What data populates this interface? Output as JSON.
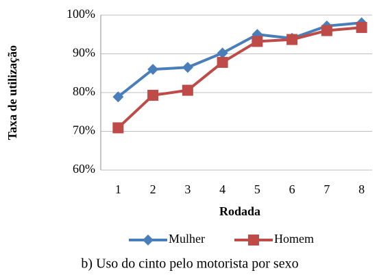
{
  "chart_data": {
    "type": "line",
    "caption": "b) Uso do cinto pelo motorista por sexo",
    "xlabel": "Rodada",
    "ylabel": "Taxa de utilização",
    "categories": [
      "1",
      "2",
      "3",
      "4",
      "5",
      "6",
      "7",
      "8"
    ],
    "series": [
      {
        "name": "Mulher",
        "color": "#4a7ebb",
        "marker": "diamond",
        "values": [
          78.9,
          86.0,
          86.5,
          90.2,
          95.0,
          94.0,
          97.2,
          98.0
        ]
      },
      {
        "name": "Homem",
        "color": "#be4b48",
        "marker": "square",
        "values": [
          70.9,
          79.3,
          80.6,
          87.8,
          93.2,
          93.7,
          96.0,
          96.8
        ]
      }
    ],
    "ylim": [
      60,
      100
    ],
    "yticks": [
      {
        "value": 60,
        "label": "60%"
      },
      {
        "value": 70,
        "label": "70%"
      },
      {
        "value": 80,
        "label": "80%"
      },
      {
        "value": 90,
        "label": "90%"
      },
      {
        "value": 100,
        "label": "100%"
      }
    ],
    "grid": true,
    "legend": "bottom"
  }
}
